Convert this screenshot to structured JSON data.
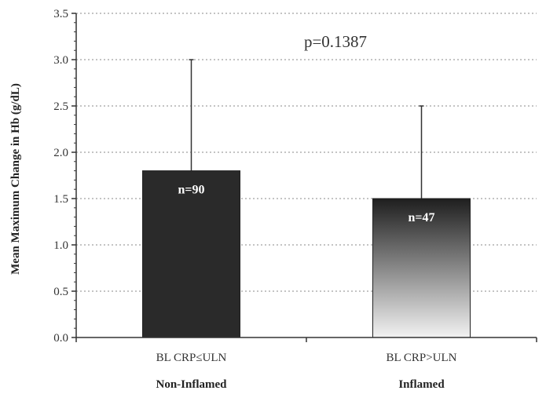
{
  "chart_data": {
    "type": "bar",
    "ylabel": "Mean Maximum Change in  Hb (g/dL)",
    "ylim": [
      0,
      3.5
    ],
    "yticks": [
      "0.0",
      "0.5",
      "1.0",
      "1.5",
      "2.0",
      "2.5",
      "3.0",
      "3.5"
    ],
    "grid": true,
    "categories": [
      "BL CRP≤ULN",
      "BL CRP>ULN"
    ],
    "group_labels": [
      "Non-Inflamed",
      "Inflamed"
    ],
    "values": [
      1.8,
      1.5
    ],
    "error_upper": [
      3.0,
      2.5
    ],
    "bar_labels": [
      "n=90",
      "n=47"
    ],
    "annotation": "p=0.1387",
    "colors": {
      "bar1": "#2a2a2a",
      "bar2_top": "#1e1e1e",
      "bar2_bottom": "#f2f2f2",
      "grid": "#888888",
      "axis": "#333333"
    }
  }
}
